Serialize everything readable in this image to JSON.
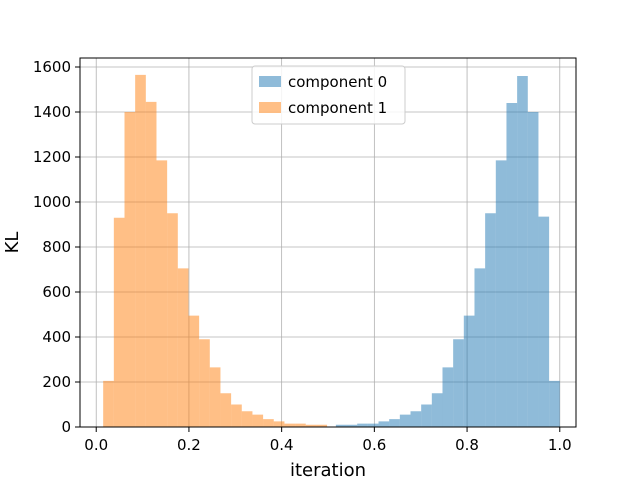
{
  "chart_data": {
    "type": "bar",
    "title": "",
    "xlabel": "iteration",
    "ylabel": "KL",
    "xlim": [
      -0.035,
      1.035
    ],
    "ylim": [
      0,
      1640
    ],
    "xticks": [
      "0.0",
      "0.2",
      "0.4",
      "0.6",
      "0.8",
      "1.0"
    ],
    "xtick_values": [
      0.0,
      0.2,
      0.4,
      0.6,
      0.8,
      1.0
    ],
    "yticks": [
      "0",
      "200",
      "400",
      "600",
      "800",
      "1000",
      "1200",
      "1400",
      "1600"
    ],
    "ytick_values": [
      0,
      200,
      400,
      600,
      800,
      1000,
      1200,
      1400,
      1600
    ],
    "grid": true,
    "legend_position": "top-center",
    "series": [
      {
        "name": "component 0",
        "color": "#1f77b4",
        "alpha": 0.5,
        "bins": [
          [
            0.517,
            0.54,
            10
          ],
          [
            0.54,
            0.563,
            10
          ],
          [
            0.563,
            0.586,
            15
          ],
          [
            0.586,
            0.609,
            15
          ],
          [
            0.609,
            0.632,
            25
          ],
          [
            0.632,
            0.655,
            35
          ],
          [
            0.655,
            0.678,
            55
          ],
          [
            0.678,
            0.701,
            70
          ],
          [
            0.701,
            0.724,
            100
          ],
          [
            0.724,
            0.747,
            150
          ],
          [
            0.747,
            0.77,
            265
          ],
          [
            0.77,
            0.793,
            390
          ],
          [
            0.793,
            0.816,
            495
          ],
          [
            0.816,
            0.839,
            705
          ],
          [
            0.839,
            0.862,
            950
          ],
          [
            0.862,
            0.885,
            1185
          ],
          [
            0.885,
            0.908,
            1440
          ],
          [
            0.908,
            0.931,
            1560
          ],
          [
            0.931,
            0.954,
            1400
          ],
          [
            0.954,
            0.977,
            935
          ],
          [
            0.977,
            1.0,
            205
          ]
        ]
      },
      {
        "name": "component 1",
        "color": "#ff7f0e",
        "alpha": 0.5,
        "bins": [
          [
            0.015,
            0.038,
            205
          ],
          [
            0.038,
            0.061,
            930
          ],
          [
            0.061,
            0.084,
            1400
          ],
          [
            0.084,
            0.107,
            1565
          ],
          [
            0.107,
            0.13,
            1445
          ],
          [
            0.13,
            0.153,
            1185
          ],
          [
            0.153,
            0.176,
            950
          ],
          [
            0.176,
            0.199,
            705
          ],
          [
            0.199,
            0.222,
            495
          ],
          [
            0.222,
            0.245,
            390
          ],
          [
            0.245,
            0.268,
            265
          ],
          [
            0.268,
            0.291,
            150
          ],
          [
            0.291,
            0.314,
            100
          ],
          [
            0.314,
            0.337,
            70
          ],
          [
            0.337,
            0.36,
            55
          ],
          [
            0.36,
            0.383,
            35
          ],
          [
            0.383,
            0.406,
            25
          ],
          [
            0.406,
            0.429,
            15
          ],
          [
            0.429,
            0.452,
            15
          ],
          [
            0.452,
            0.475,
            10
          ],
          [
            0.475,
            0.498,
            10
          ]
        ]
      }
    ]
  }
}
